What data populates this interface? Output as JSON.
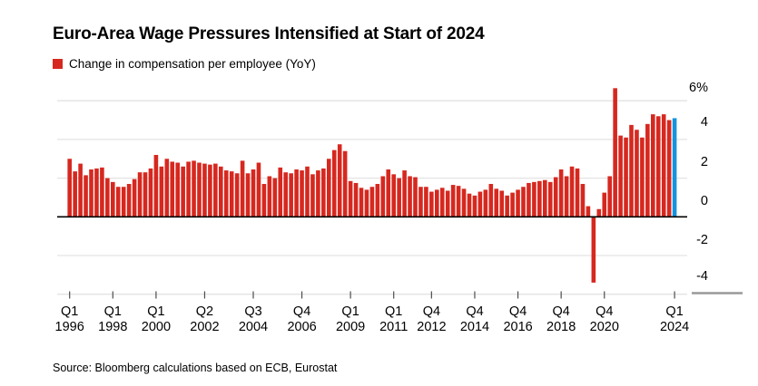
{
  "header": {
    "title": "Euro-Area Wage Pressures Intensified at Start of 2024"
  },
  "legend": {
    "label": "Change in compensation per employee (YoY)",
    "swatch_color": "#d6281f"
  },
  "source": {
    "text": "Source: Bloomberg calculations based on ECB, Eurostat"
  },
  "colors": {
    "bar": "#d6281f",
    "highlight_bar": "#1593dc",
    "gridline": "#e3e3e3",
    "zero_line": "#000000",
    "tick": "#4d4d4d",
    "axis_end_dash": "#999999"
  },
  "chart_data": {
    "type": "bar",
    "title": "Euro-Area Wage Pressures Intensified at Start of 2024",
    "series_name": "Change in compensation per employee (YoY)",
    "unit": "%",
    "frequency": "quarterly",
    "x_start": "1996 Q1",
    "x_end": "2024 Q1",
    "grid": "horizontal",
    "legend_position": "top-left",
    "y_axis_side": "right",
    "ylim": [
      -4.6,
      6.9
    ],
    "yticks": [
      {
        "value": 6,
        "label": "6%"
      },
      {
        "value": 4,
        "label": "4"
      },
      {
        "value": 2,
        "label": "2"
      },
      {
        "value": 0,
        "label": "0"
      },
      {
        "value": -2,
        "label": "-2"
      },
      {
        "value": -4,
        "label": "-4"
      }
    ],
    "xticks": [
      {
        "index": 0,
        "line1": "Q1",
        "line2": "1996"
      },
      {
        "index": 8,
        "line1": "Q1",
        "line2": "1998"
      },
      {
        "index": 16,
        "line1": "Q1",
        "line2": "2000"
      },
      {
        "index": 25,
        "line1": "Q2",
        "line2": "2002"
      },
      {
        "index": 34,
        "line1": "Q3",
        "line2": "2004"
      },
      {
        "index": 43,
        "line1": "Q4",
        "line2": "2006"
      },
      {
        "index": 52,
        "line1": "Q1",
        "line2": "2009"
      },
      {
        "index": 60,
        "line1": "Q1",
        "line2": "2011"
      },
      {
        "index": 67,
        "line1": "Q4",
        "line2": "2012"
      },
      {
        "index": 75,
        "line1": "Q4",
        "line2": "2014"
      },
      {
        "index": 83,
        "line1": "Q4",
        "line2": "2016"
      },
      {
        "index": 91,
        "line1": "Q4",
        "line2": "2018"
      },
      {
        "index": 99,
        "line1": "Q4",
        "line2": "2020"
      },
      {
        "index": 112,
        "line1": "Q1",
        "line2": "2024"
      }
    ],
    "highlight": {
      "index": 112,
      "category": "2024Q1",
      "color": "#1593dc"
    },
    "categories": [
      "1996Q1",
      "1996Q2",
      "1996Q3",
      "1996Q4",
      "1997Q1",
      "1997Q2",
      "1997Q3",
      "1997Q4",
      "1998Q1",
      "1998Q2",
      "1998Q3",
      "1998Q4",
      "1999Q1",
      "1999Q2",
      "1999Q3",
      "1999Q4",
      "2000Q1",
      "2000Q2",
      "2000Q3",
      "2000Q4",
      "2001Q1",
      "2001Q2",
      "2001Q3",
      "2001Q4",
      "2002Q1",
      "2002Q2",
      "2002Q3",
      "2002Q4",
      "2003Q1",
      "2003Q2",
      "2003Q3",
      "2003Q4",
      "2004Q1",
      "2004Q2",
      "2004Q3",
      "2004Q4",
      "2005Q1",
      "2005Q2",
      "2005Q3",
      "2005Q4",
      "2006Q1",
      "2006Q2",
      "2006Q3",
      "2006Q4",
      "2007Q1",
      "2007Q2",
      "2007Q3",
      "2007Q4",
      "2008Q1",
      "2008Q2",
      "2008Q3",
      "2008Q4",
      "2009Q1",
      "2009Q2",
      "2009Q3",
      "2009Q4",
      "2010Q1",
      "2010Q2",
      "2010Q3",
      "2010Q4",
      "2011Q1",
      "2011Q2",
      "2011Q3",
      "2011Q4",
      "2012Q1",
      "2012Q2",
      "2012Q3",
      "2012Q4",
      "2013Q1",
      "2013Q2",
      "2013Q3",
      "2013Q4",
      "2014Q1",
      "2014Q2",
      "2014Q3",
      "2014Q4",
      "2015Q1",
      "2015Q2",
      "2015Q3",
      "2015Q4",
      "2016Q1",
      "2016Q2",
      "2016Q3",
      "2016Q4",
      "2017Q1",
      "2017Q2",
      "2017Q3",
      "2017Q4",
      "2018Q1",
      "2018Q2",
      "2018Q3",
      "2018Q4",
      "2019Q1",
      "2019Q2",
      "2019Q3",
      "2019Q4",
      "2020Q1",
      "2020Q2",
      "2020Q3",
      "2020Q4",
      "2021Q1",
      "2021Q2",
      "2021Q3",
      "2021Q4",
      "2022Q1",
      "2022Q2",
      "2022Q3",
      "2022Q4",
      "2023Q1",
      "2023Q2",
      "2023Q3",
      "2023Q4",
      "2024Q1"
    ],
    "values": [
      3.0,
      2.35,
      2.75,
      2.15,
      2.45,
      2.5,
      2.55,
      2.0,
      1.8,
      1.55,
      1.55,
      1.7,
      1.95,
      2.3,
      2.3,
      2.5,
      3.2,
      2.6,
      3.0,
      2.85,
      2.8,
      2.6,
      2.85,
      2.9,
      2.8,
      2.75,
      2.7,
      2.75,
      2.6,
      2.4,
      2.35,
      2.25,
      2.9,
      2.25,
      2.45,
      2.8,
      1.7,
      2.1,
      2.0,
      2.55,
      2.3,
      2.25,
      2.45,
      2.4,
      2.6,
      2.2,
      2.4,
      2.5,
      3.0,
      3.45,
      3.75,
      3.4,
      1.85,
      1.75,
      1.5,
      1.4,
      1.55,
      1.7,
      2.1,
      2.45,
      2.2,
      2.0,
      2.4,
      2.1,
      2.05,
      1.55,
      1.55,
      1.3,
      1.4,
      1.5,
      1.35,
      1.65,
      1.6,
      1.45,
      1.2,
      1.1,
      1.3,
      1.4,
      1.7,
      1.45,
      1.35,
      1.1,
      1.25,
      1.4,
      1.55,
      1.75,
      1.8,
      1.85,
      1.9,
      1.8,
      2.05,
      2.45,
      2.1,
      2.6,
      2.5,
      1.7,
      0.55,
      -3.4,
      0.4,
      1.25,
      2.1,
      6.65,
      4.2,
      4.1,
      4.75,
      4.5,
      4.1,
      4.8,
      5.3,
      5.2,
      5.3,
      5.0,
      5.1
    ]
  }
}
